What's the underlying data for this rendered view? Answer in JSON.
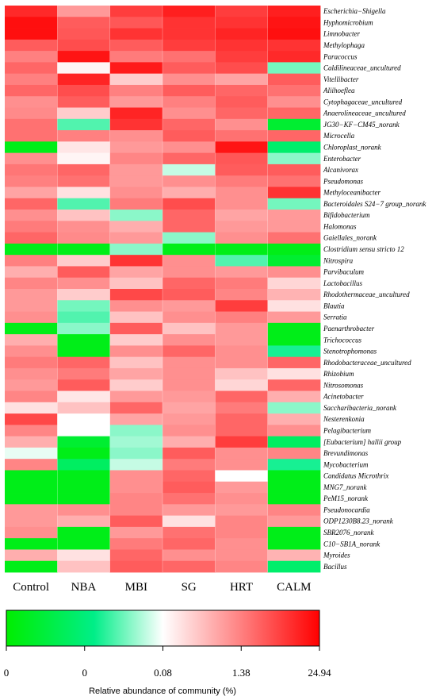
{
  "chart_data": {
    "type": "heatmap",
    "columns": [
      "Control",
      "NBA",
      "MBI",
      "SG",
      "HRT",
      "CALM"
    ],
    "rows": [
      "Escherichia−Shigella",
      "Hyphomicrobium",
      "Limnobacter",
      "Methylophaga",
      "Paracoccus",
      "Caldilineaceae_uncultured",
      "Vitellibacter",
      "Aliihoeflea",
      "Cytophagaceae_uncultured",
      "Anaerolineaceae_uncultured",
      "JG30−KF−CM45_norank",
      "Microcella",
      "Chloroplast_norank",
      "Enterobacter",
      "Alcanivorax",
      "Pseudomonas",
      "Methyloceanibacter",
      "Bacteroidales S24−7 group_norank",
      "Bifidobacterium",
      "Halomonas",
      "Gaiellales_norank",
      "Clostridium sensu stricto 12",
      "Nitrospira",
      "Parvibaculum",
      "Lactobacillus",
      "Rhodothermaceae_uncultured",
      "Blautia",
      "Serratia",
      "Paenarthrobacter",
      "Trichococcus",
      "Stenotrophomonas",
      "Rhodobacteraceae_uncultured",
      "Rhizobium",
      "Nitrosomonas",
      "Acinetobacter",
      "Saccharibacteria_norank",
      "Nesterenkonia",
      "Pelagibacterium",
      "[Eubacterium] hallii group",
      "Brevundimonas",
      "Mycobacterium",
      "Candidatus Microthrix",
      "MNG7_norank",
      "PeM15_norank",
      "Pseudonocardia",
      "ODP1230B8.23_norank",
      "SBR2076_norank",
      "C10−SB1A_norank",
      "Myroides",
      "Bacillus"
    ],
    "color_scale": {
      "stops": [
        0.0,
        0.28,
        0.5,
        0.75,
        1.0
      ],
      "colors": [
        "#00ee00",
        "#00ee88",
        "#ffffff",
        "#ff8080",
        "#ff0000"
      ],
      "tick_labels": [
        "0",
        "0",
        "0.08",
        "1.38",
        "24.94"
      ],
      "label": "Relative abundance of community (%)"
    },
    "values": [
      [
        0.92,
        0.7,
        0.88,
        0.94,
        0.88,
        0.94
      ],
      [
        0.97,
        0.82,
        0.83,
        0.9,
        0.9,
        0.96
      ],
      [
        0.97,
        0.83,
        0.9,
        0.9,
        0.93,
        0.97
      ],
      [
        0.82,
        0.85,
        0.82,
        0.88,
        0.9,
        0.9
      ],
      [
        0.75,
        0.96,
        0.76,
        0.78,
        0.88,
        0.92
      ],
      [
        0.8,
        0.52,
        0.95,
        0.82,
        0.85,
        0.38
      ],
      [
        0.75,
        0.93,
        0.6,
        0.72,
        0.68,
        0.82
      ],
      [
        0.8,
        0.85,
        0.75,
        0.82,
        0.8,
        0.78
      ],
      [
        0.72,
        0.82,
        0.7,
        0.75,
        0.82,
        0.72
      ],
      [
        0.73,
        0.6,
        0.93,
        0.72,
        0.8,
        0.8
      ],
      [
        0.78,
        0.35,
        0.9,
        0.8,
        0.72,
        0.1
      ],
      [
        0.78,
        0.75,
        0.72,
        0.82,
        0.78,
        0.8
      ],
      [
        0.05,
        0.55,
        0.7,
        0.72,
        0.96,
        0.22
      ],
      [
        0.72,
        0.52,
        0.74,
        0.8,
        0.83,
        0.4
      ],
      [
        0.77,
        0.8,
        0.7,
        0.45,
        0.82,
        0.82
      ],
      [
        0.75,
        0.78,
        0.7,
        0.72,
        0.76,
        0.78
      ],
      [
        0.68,
        0.56,
        0.72,
        0.66,
        0.72,
        0.9
      ],
      [
        0.8,
        0.35,
        0.76,
        0.85,
        0.72,
        0.38
      ],
      [
        0.72,
        0.62,
        0.4,
        0.8,
        0.68,
        0.7
      ],
      [
        0.76,
        0.72,
        0.66,
        0.8,
        0.7,
        0.7
      ],
      [
        0.8,
        0.73,
        0.7,
        0.4,
        0.72,
        0.78
      ],
      [
        0.05,
        0.05,
        0.4,
        0.05,
        0.05,
        0.05
      ],
      [
        0.75,
        0.6,
        0.9,
        0.72,
        0.35,
        0.1
      ],
      [
        0.66,
        0.82,
        0.68,
        0.72,
        0.7,
        0.72
      ],
      [
        0.74,
        0.72,
        0.62,
        0.8,
        0.76,
        0.58
      ],
      [
        0.7,
        0.6,
        0.86,
        0.82,
        0.74,
        0.65
      ],
      [
        0.7,
        0.38,
        0.72,
        0.7,
        0.88,
        0.56
      ],
      [
        0.72,
        0.35,
        0.62,
        0.72,
        0.75,
        0.7
      ],
      [
        0.05,
        0.4,
        0.82,
        0.62,
        0.7,
        0.05
      ],
      [
        0.66,
        0.05,
        0.6,
        0.72,
        0.7,
        0.05
      ],
      [
        0.72,
        0.05,
        0.72,
        0.8,
        0.72,
        0.3
      ],
      [
        0.76,
        0.8,
        0.62,
        0.72,
        0.72,
        0.8
      ],
      [
        0.72,
        0.76,
        0.68,
        0.72,
        0.62,
        0.56
      ],
      [
        0.7,
        0.82,
        0.6,
        0.72,
        0.58,
        0.8
      ],
      [
        0.74,
        0.55,
        0.7,
        0.7,
        0.8,
        0.66
      ],
      [
        0.56,
        0.62,
        0.8,
        0.68,
        0.76,
        0.4
      ],
      [
        0.86,
        0.5,
        0.68,
        0.7,
        0.8,
        0.66
      ],
      [
        0.74,
        0.5,
        0.4,
        0.72,
        0.8,
        0.72
      ],
      [
        0.66,
        0.1,
        0.42,
        0.66,
        0.88,
        0.2
      ],
      [
        0.48,
        0.05,
        0.4,
        0.82,
        0.72,
        0.74
      ],
      [
        0.74,
        0.2,
        0.45,
        0.76,
        0.72,
        0.3
      ],
      [
        0.05,
        0.05,
        0.72,
        0.8,
        0.5,
        0.05
      ],
      [
        0.05,
        0.05,
        0.72,
        0.82,
        0.7,
        0.05
      ],
      [
        0.05,
        0.05,
        0.74,
        0.78,
        0.72,
        0.05
      ],
      [
        0.7,
        0.72,
        0.74,
        0.7,
        0.7,
        0.74
      ],
      [
        0.7,
        0.66,
        0.82,
        0.56,
        0.74,
        0.7
      ],
      [
        0.72,
        0.05,
        0.7,
        0.78,
        0.74,
        0.05
      ],
      [
        0.05,
        0.05,
        0.76,
        0.8,
        0.72,
        0.05
      ],
      [
        0.66,
        0.56,
        0.8,
        0.72,
        0.72,
        0.65
      ],
      [
        0.05,
        0.62,
        0.82,
        0.8,
        0.74,
        0.22
      ]
    ]
  }
}
